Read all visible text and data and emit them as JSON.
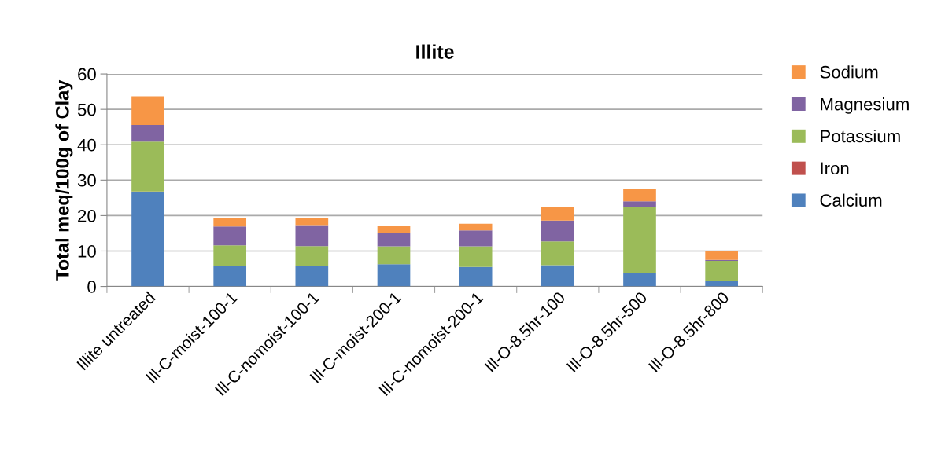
{
  "chart_data": {
    "type": "bar",
    "title": "Illite",
    "ylabel": "Total meq/100g of Clay",
    "stacked": true,
    "categories": [
      "Illite untreated",
      "Ill-C-moist-100-1",
      "Ill-C-nomoist-100-1",
      "Ill-C-moist-200-1",
      "Ill-C-nomoist-200-1",
      "Ill-O-8.5hr-100",
      "Ill-O-8.5hr-500",
      "Ill-O-8.5hr-800"
    ],
    "series": [
      {
        "name": "Calcium",
        "color": "#4f81bd",
        "values": [
          26.6,
          5.9,
          5.7,
          6.3,
          5.5,
          6.0,
          3.7,
          1.6
        ]
      },
      {
        "name": "Iron",
        "color": "#c0504d",
        "values": [
          0.2,
          0,
          0,
          0,
          0,
          0,
          0,
          0
        ]
      },
      {
        "name": "Potassium",
        "color": "#9bbb59",
        "values": [
          14.1,
          5.7,
          5.7,
          5.0,
          5.8,
          6.7,
          18.7,
          5.6
        ]
      },
      {
        "name": "Magnesium",
        "color": "#8064a2",
        "values": [
          4.7,
          5.3,
          5.9,
          3.9,
          4.5,
          5.9,
          1.6,
          0.3
        ]
      },
      {
        "name": "Sodium",
        "color": "#f79646",
        "values": [
          8.1,
          2.3,
          1.9,
          1.9,
          1.9,
          3.8,
          3.4,
          2.6
        ]
      }
    ],
    "ylim": [
      0,
      60
    ],
    "yticks": [
      0,
      10,
      20,
      30,
      40,
      50,
      60
    ],
    "grid": "y",
    "legend": "right"
  }
}
